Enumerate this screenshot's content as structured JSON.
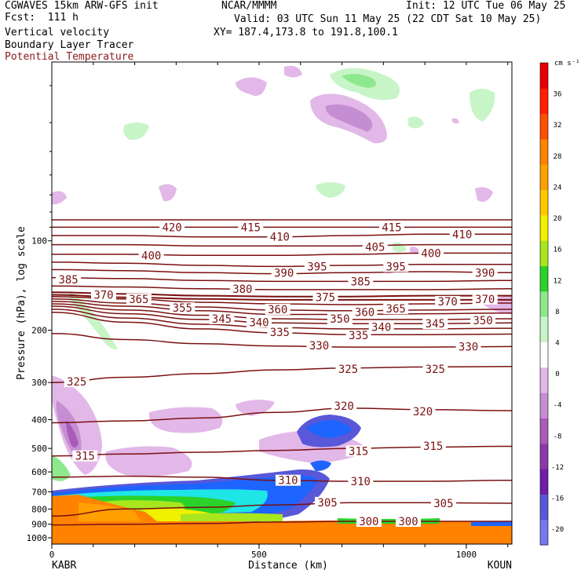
{
  "header": {
    "model": "CGWAVES 15km ARW-GFS init",
    "forecast": "Fcst:  111 h",
    "org": "NCAR/MMMM",
    "init": "Init: 12 UTC Tue 06 May 25",
    "valid": "Valid: 03 UTC Sun 11 May 25 (22 CDT Sat 10 May 25)",
    "xy": "XY= 187.4,173.8 to 191.8,100.1",
    "field1": "Vertical velocity",
    "field2": "Boundary Layer Tracer",
    "field3": "Potential Temperature"
  },
  "colors": {
    "theta": "#7a1010",
    "field3_label": "#8b1a1a"
  },
  "chart_data": {
    "type": "cross-section",
    "ylabel": "Pressure (hPa), log scale",
    "xlabel": "Distance (km)",
    "left_endpoint": "KABR",
    "right_endpoint": "KOUN",
    "x_ticks": [
      {
        "value": 0,
        "label": "0"
      },
      {
        "value": 500,
        "label": "500"
      },
      {
        "value": 1000,
        "label": "1000"
      }
    ],
    "y_ticks": [
      {
        "value": 100,
        "label": "100"
      },
      {
        "value": 200,
        "label": "200"
      },
      {
        "value": 300,
        "label": "300"
      },
      {
        "value": 400,
        "label": "400"
      },
      {
        "value": 500,
        "label": "500"
      },
      {
        "value": 600,
        "label": "600"
      },
      {
        "value": 700,
        "label": "700"
      },
      {
        "value": 800,
        "label": "800"
      },
      {
        "value": 900,
        "label": "900"
      },
      {
        "value": 1000,
        "label": "1000"
      }
    ],
    "colorbar": {
      "unit": "cm s⁻¹",
      "labels": [
        {
          "value": 36,
          "label": "36"
        },
        {
          "value": 32,
          "label": "32"
        },
        {
          "value": 28,
          "label": "28"
        },
        {
          "value": 24,
          "label": "24"
        },
        {
          "value": 20,
          "label": "20"
        },
        {
          "value": 16,
          "label": "16"
        },
        {
          "value": 12,
          "label": "12"
        },
        {
          "value": 8,
          "label": "8"
        },
        {
          "value": 4,
          "label": "4"
        },
        {
          "value": 0,
          "label": "0"
        },
        {
          "value": -4,
          "label": "-4"
        },
        {
          "value": -8,
          "label": "-8"
        },
        {
          "value": -12,
          "label": "-12"
        },
        {
          "value": -16,
          "label": "-16"
        },
        {
          "value": -20,
          "label": "-20"
        }
      ],
      "colors": [
        "#7878f0",
        "#5858d8",
        "#6e1ea8",
        "#8a3aa8",
        "#a85cb8",
        "#c68ed2",
        "#e2b8e8",
        "#ffffff",
        "#c8f5c8",
        "#8ee88e",
        "#2ad22a",
        "#a8e61e",
        "#f0f000",
        "#ffc800",
        "#ffa000",
        "#ff8200",
        "#ff5000",
        "#ff1e00",
        "#e60000"
      ]
    },
    "theta_labels": [
      {
        "x": 290,
        "p": 90,
        "label": "420"
      },
      {
        "x": 480,
        "p": 90,
        "label": "415"
      },
      {
        "x": 820,
        "p": 90,
        "label": "415"
      },
      {
        "x": 550,
        "p": 97,
        "label": "410"
      },
      {
        "x": 990,
        "p": 95,
        "label": "410"
      },
      {
        "x": 240,
        "p": 112,
        "label": "400"
      },
      {
        "x": 780,
        "p": 105,
        "label": "405"
      },
      {
        "x": 915,
        "p": 110,
        "label": "400"
      },
      {
        "x": 40,
        "p": 135,
        "label": "385"
      },
      {
        "x": 560,
        "p": 128,
        "label": "390"
      },
      {
        "x": 640,
        "p": 122,
        "label": "395"
      },
      {
        "x": 830,
        "p": 122,
        "label": "395"
      },
      {
        "x": 1045,
        "p": 128,
        "label": "390"
      },
      {
        "x": 460,
        "p": 145,
        "label": "380"
      },
      {
        "x": 745,
        "p": 137,
        "label": "385"
      },
      {
        "x": 125,
        "p": 152,
        "label": "370"
      },
      {
        "x": 210,
        "p": 157,
        "label": "365"
      },
      {
        "x": 660,
        "p": 155,
        "label": "375"
      },
      {
        "x": 955,
        "p": 160,
        "label": "370"
      },
      {
        "x": 1045,
        "p": 157,
        "label": "370"
      },
      {
        "x": 315,
        "p": 168,
        "label": "355"
      },
      {
        "x": 545,
        "p": 170,
        "label": "360"
      },
      {
        "x": 755,
        "p": 174,
        "label": "360"
      },
      {
        "x": 830,
        "p": 169,
        "label": "365"
      },
      {
        "x": 410,
        "p": 183,
        "label": "345"
      },
      {
        "x": 500,
        "p": 188,
        "label": "340"
      },
      {
        "x": 695,
        "p": 183,
        "label": "350"
      },
      {
        "x": 795,
        "p": 195,
        "label": "340"
      },
      {
        "x": 925,
        "p": 190,
        "label": "345"
      },
      {
        "x": 1040,
        "p": 185,
        "label": "350"
      },
      {
        "x": 550,
        "p": 203,
        "label": "335"
      },
      {
        "x": 740,
        "p": 208,
        "label": "335"
      },
      {
        "x": 645,
        "p": 225,
        "label": "330"
      },
      {
        "x": 1005,
        "p": 227,
        "label": "330"
      },
      {
        "x": 60,
        "p": 298,
        "label": "325"
      },
      {
        "x": 715,
        "p": 270,
        "label": "325"
      },
      {
        "x": 925,
        "p": 270,
        "label": "325"
      },
      {
        "x": 705,
        "p": 360,
        "label": "320"
      },
      {
        "x": 895,
        "p": 375,
        "label": "320"
      },
      {
        "x": 80,
        "p": 530,
        "label": "315"
      },
      {
        "x": 740,
        "p": 510,
        "label": "315"
      },
      {
        "x": 920,
        "p": 490,
        "label": "315"
      },
      {
        "x": 570,
        "p": 640,
        "label": "310"
      },
      {
        "x": 745,
        "p": 645,
        "label": "310"
      },
      {
        "x": 665,
        "p": 760,
        "label": "305"
      },
      {
        "x": 945,
        "p": 765,
        "label": "305"
      },
      {
        "x": 765,
        "p": 880,
        "label": "300"
      },
      {
        "x": 860,
        "p": 880,
        "label": "300"
      }
    ],
    "theta_lines": [
      {
        "value": 420,
        "p": [
          85,
          85,
          85,
          85,
          85,
          85,
          85
        ]
      },
      {
        "value": 415,
        "p": [
          90,
          90,
          90,
          90,
          90,
          90,
          90
        ]
      },
      {
        "value": 410,
        "p": [
          96,
          96,
          97,
          97,
          96,
          95,
          95
        ]
      },
      {
        "value": 405,
        "p": [
          103,
          103,
          104,
          104,
          104,
          103,
          103
        ]
      },
      {
        "value": 400,
        "p": [
          111,
          111,
          112,
          112,
          111,
          110,
          110
        ]
      },
      {
        "value": 395,
        "p": [
          118,
          119,
          121,
          122,
          121,
          120,
          120
        ]
      },
      {
        "value": 390,
        "p": [
          125,
          126,
          128,
          129,
          128,
          127,
          128
        ]
      },
      {
        "value": 385,
        "p": [
          133,
          134,
          136,
          137,
          137,
          137,
          136
        ]
      },
      {
        "value": 380,
        "p": [
          142,
          143,
          145,
          146,
          146,
          146,
          145
        ]
      },
      {
        "value": 375,
        "p": [
          149,
          151,
          153,
          154,
          154,
          153,
          153
        ]
      },
      {
        "value": 370,
        "p": [
          152,
          155,
          157,
          158,
          158,
          158,
          158
        ]
      },
      {
        "value": 365,
        "p": [
          154,
          157,
          161,
          163,
          164,
          163,
          162
        ]
      },
      {
        "value": 360,
        "p": [
          157,
          162,
          167,
          171,
          172,
          171,
          170
        ]
      },
      {
        "value": 355,
        "p": [
          160,
          166,
          172,
          177,
          177,
          176,
          175
        ]
      },
      {
        "value": 350,
        "p": [
          163,
          171,
          178,
          183,
          184,
          184,
          183
        ]
      },
      {
        "value": 345,
        "p": [
          166,
          176,
          184,
          189,
          190,
          190,
          189
        ]
      },
      {
        "value": 340,
        "p": [
          170,
          182,
          191,
          196,
          198,
          198,
          197
        ]
      },
      {
        "value": 335,
        "p": [
          174,
          188,
          198,
          204,
          207,
          207,
          206
        ]
      },
      {
        "value": 330,
        "p": [
          205,
          215,
          222,
          226,
          228,
          228,
          227
        ]
      },
      {
        "value": 325,
        "p": [
          300,
          288,
          280,
          272,
          268,
          266,
          265
        ]
      },
      {
        "value": 320,
        "p": [
          410,
          404,
          395,
          378,
          366,
          370,
          373
        ]
      },
      {
        "value": 315,
        "p": [
          530,
          522,
          515,
          508,
          500,
          495,
          492
        ]
      },
      {
        "value": 310,
        "p": [
          625,
          620,
          625,
          640,
          645,
          645,
          640
        ]
      },
      {
        "value": 305,
        "p": [
          845,
          800,
          790,
          775,
          762,
          762,
          765
        ]
      },
      {
        "value": 300,
        "p": [
          905,
          900,
          895,
          885,
          880,
          880,
          880
        ]
      }
    ],
    "theta_x": [
      0,
      180,
      360,
      540,
      720,
      900,
      1110
    ],
    "xlim": [
      0,
      1110
    ],
    "ylim": [
      1050,
      25
    ],
    "yscale": "log"
  }
}
